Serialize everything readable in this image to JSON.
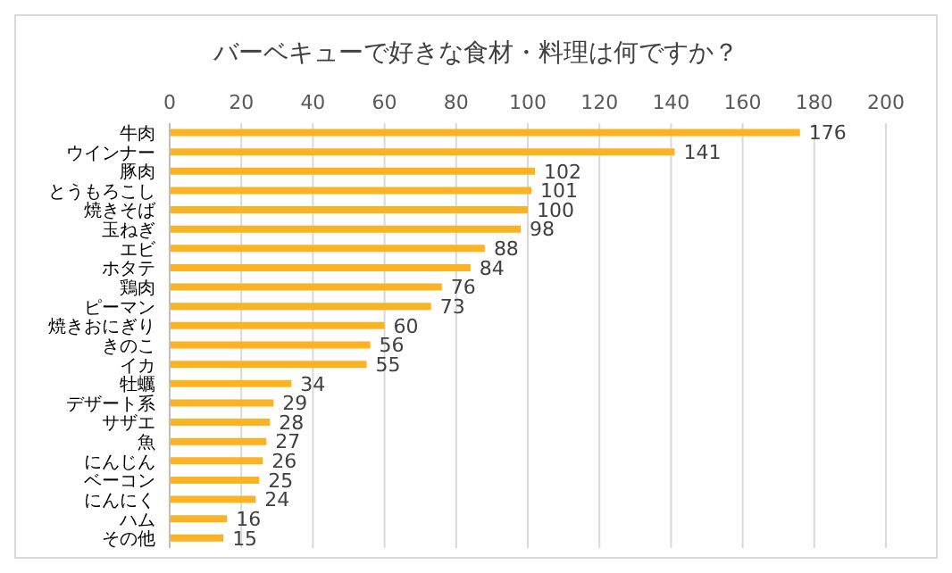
{
  "chart_data": {
    "type": "bar",
    "orientation": "horizontal",
    "title": "バーベキューで好きな食材・料理は何ですか？",
    "categories": [
      "牛肉",
      "ウインナー",
      "豚肉",
      "とうもろこし",
      "焼きそば",
      "玉ねぎ",
      "エビ",
      "ホタテ",
      "鶏肉",
      "ピーマン",
      "焼きおにぎり",
      "きのこ",
      "イカ",
      "牡蠣",
      "デザート系",
      "サザエ",
      "魚",
      "にんじん",
      "ベーコン",
      "にんにく",
      "ハム",
      "その他"
    ],
    "values": [
      176,
      141,
      102,
      101,
      100,
      98,
      88,
      84,
      76,
      73,
      60,
      56,
      55,
      34,
      29,
      28,
      27,
      26,
      25,
      24,
      16,
      15
    ],
    "color": "#fbb323",
    "xlim": [
      0,
      200
    ],
    "xticks": [
      0,
      20,
      40,
      60,
      80,
      100,
      120,
      140,
      160,
      180,
      200
    ],
    "grid": "x",
    "data_labels": true
  }
}
